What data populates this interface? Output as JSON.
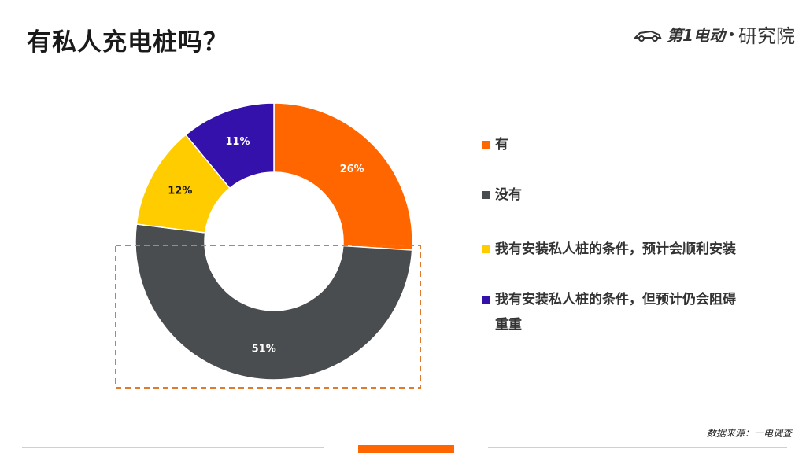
{
  "title": "有私人充电桩吗？",
  "logo": {
    "brand": "第1电动",
    "suffix": "研究院"
  },
  "source": "数据来源：一电调查",
  "chart_data": {
    "type": "pie",
    "donut": true,
    "labels": [
      "有",
      "没有",
      "我有安装私人桩的条件，预计会顺利安装",
      "我有安装私人桩的条件，但预计仍会阻碍重重"
    ],
    "values": [
      26,
      51,
      12,
      11
    ],
    "value_labels": [
      "26%",
      "51%",
      "12%",
      "11%"
    ],
    "colors": [
      "#ff6600",
      "#4a4d4f",
      "#ffcc00",
      "#3311aa"
    ],
    "label_colors": [
      "#ffffff",
      "#ffffff",
      "#1a1a1a",
      "#ffffff"
    ],
    "legend_placement": "right"
  },
  "legend": {
    "items": [
      {
        "lines": [
          "有"
        ],
        "color": "#ff6600"
      },
      {
        "lines": [
          "没有"
        ],
        "color": "#4a4d4f"
      },
      {
        "lines": [
          "我有安装私人桩的条件，预计会顺利安装"
        ],
        "color": "#ffcc00"
      },
      {
        "lines": [
          "我有安装私人桩的条件，但预计仍会阻碍",
          "重重"
        ],
        "color": "#3311aa"
      }
    ]
  },
  "highlight_color": "#e07a2e",
  "accent_color": "#ff6600"
}
